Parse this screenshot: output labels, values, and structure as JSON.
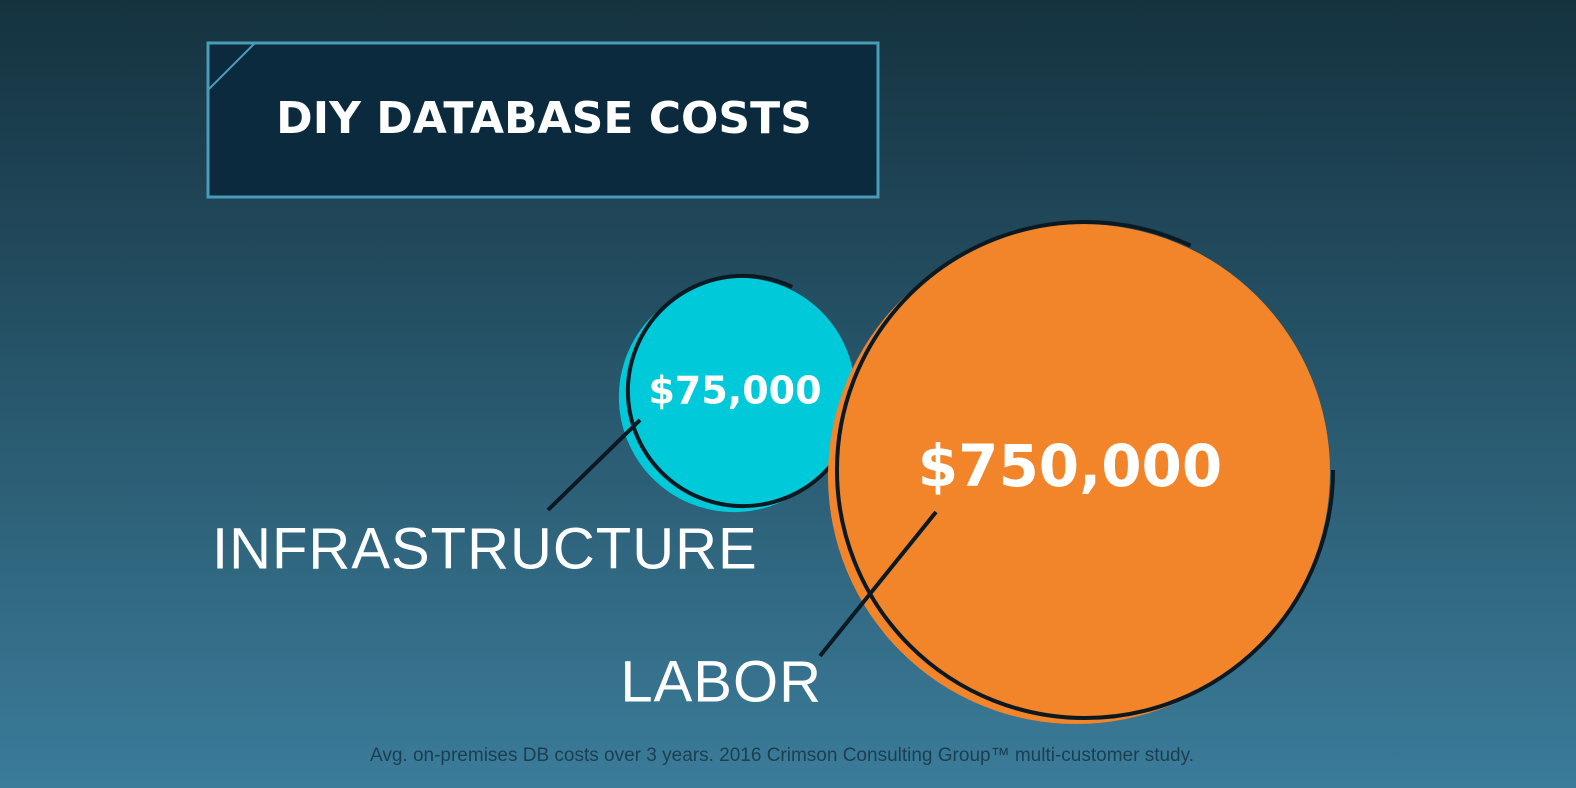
{
  "chart_data": {
    "type": "bubble",
    "title": "DIY DATABASE COSTS",
    "categories": [
      "INFRASTRUCTURE",
      "LABOR"
    ],
    "values": [
      75000,
      750000
    ],
    "value_labels": [
      "$75,000",
      "$750,000"
    ],
    "colors": [
      "#00c9d9",
      "#f2842a"
    ],
    "footnote": "Avg. on-premises DB costs over 3 years. 2016 Crimson Consulting Group™ multi-customer study."
  }
}
